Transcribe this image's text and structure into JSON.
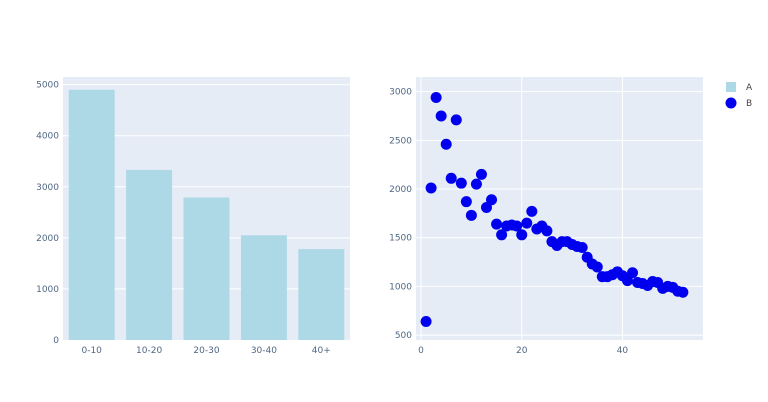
{
  "chart_data": [
    {
      "type": "bar",
      "series": [
        {
          "name": "A",
          "color": "#add8e6"
        }
      ],
      "categories": [
        "0-10",
        "10-20",
        "20-30",
        "30-40",
        "40+"
      ],
      "values": [
        4900,
        3330,
        2790,
        2050,
        1780
      ],
      "ylim": [
        0,
        5150
      ],
      "yticks": [
        0,
        1000,
        2000,
        3000,
        4000,
        5000
      ],
      "title": "",
      "xlabel": "",
      "ylabel": "",
      "grid": true
    },
    {
      "type": "scatter",
      "series": [
        {
          "name": "B",
          "color": "#0000ee",
          "x": [
            1,
            2,
            3,
            4,
            5,
            6,
            7,
            8,
            9,
            10,
            11,
            12,
            13,
            14,
            15,
            16,
            17,
            18,
            19,
            20,
            21,
            22,
            23,
            24,
            25,
            26,
            27,
            28,
            29,
            30,
            31,
            32,
            33,
            34,
            35,
            36,
            37,
            38,
            39,
            40,
            41,
            42,
            43,
            44,
            45,
            46,
            47,
            48,
            49,
            50,
            51,
            52
          ],
          "y": [
            640,
            2010,
            2940,
            2750,
            2460,
            2110,
            2710,
            2060,
            1870,
            1730,
            2050,
            2150,
            1810,
            1890,
            1640,
            1530,
            1620,
            1630,
            1620,
            1530,
            1650,
            1770,
            1590,
            1620,
            1570,
            1460,
            1420,
            1460,
            1460,
            1430,
            1410,
            1400,
            1300,
            1230,
            1200,
            1100,
            1100,
            1120,
            1150,
            1110,
            1060,
            1140,
            1040,
            1030,
            1010,
            1050,
            1040,
            980,
            1000,
            990,
            950,
            940
          ]
        }
      ],
      "xlim": [
        -1,
        56
      ],
      "ylim": [
        450,
        3150
      ],
      "xticks": [
        0,
        20,
        40
      ],
      "yticks": [
        500,
        1000,
        1500,
        2000,
        2500,
        3000
      ],
      "title": "",
      "xlabel": "",
      "ylabel": "",
      "grid": true
    }
  ],
  "legend": {
    "placement": "top-right",
    "items": [
      {
        "name": "A",
        "marker": "square",
        "color": "#add8e6"
      },
      {
        "name": "B",
        "marker": "circle",
        "color": "#0000ee"
      }
    ]
  },
  "colors": {
    "plot_bg": "#e5ecf6",
    "grid": "#ffffff",
    "tick_text": "#506784"
  }
}
